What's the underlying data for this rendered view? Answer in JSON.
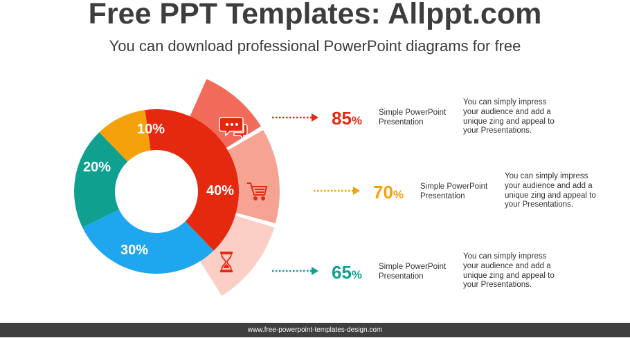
{
  "header": {
    "title": "Free PPT Templates: Allppt.com",
    "subtitle": "You can download professional PowerPoint diagrams for free"
  },
  "donut": {
    "segments": [
      {
        "label": "10%",
        "value": 10,
        "color": "#f4a10b"
      },
      {
        "label": "40%",
        "value": 40,
        "color": "#e5290e"
      },
      {
        "label": "30%",
        "value": 30,
        "color": "#1ea7ee"
      },
      {
        "label": "20%",
        "value": 20,
        "color": "#0fa08f"
      }
    ]
  },
  "fan": {
    "wedges": [
      {
        "icon": "chat-bubbles-icon",
        "color": "#f26b5a"
      },
      {
        "icon": "shopping-cart-icon",
        "color": "#f6a394"
      },
      {
        "icon": "hourglass-icon",
        "color": "#fbcfc6"
      }
    ]
  },
  "rows": [
    {
      "value": "85",
      "unit": "%",
      "color": "#e5290e",
      "title": "Simple PowerPoint Presentation",
      "desc": "You can simply impress your audience and add a unique zing and appeal to your Presentations."
    },
    {
      "value": "70",
      "unit": "%",
      "color": "#f4a10b",
      "title": "Simple PowerPoint Presentation",
      "desc": "You can simply impress your audience and add a unique zing and appeal to your Presentations."
    },
    {
      "value": "65",
      "unit": "%",
      "color": "#0fa08f",
      "title": "Simple PowerPoint Presentation",
      "desc": "You can simply impress your audience and add a unique zing and appeal to your Presentations."
    }
  ],
  "footer": {
    "url": "www.free-powerpoint-templates-design.com"
  }
}
